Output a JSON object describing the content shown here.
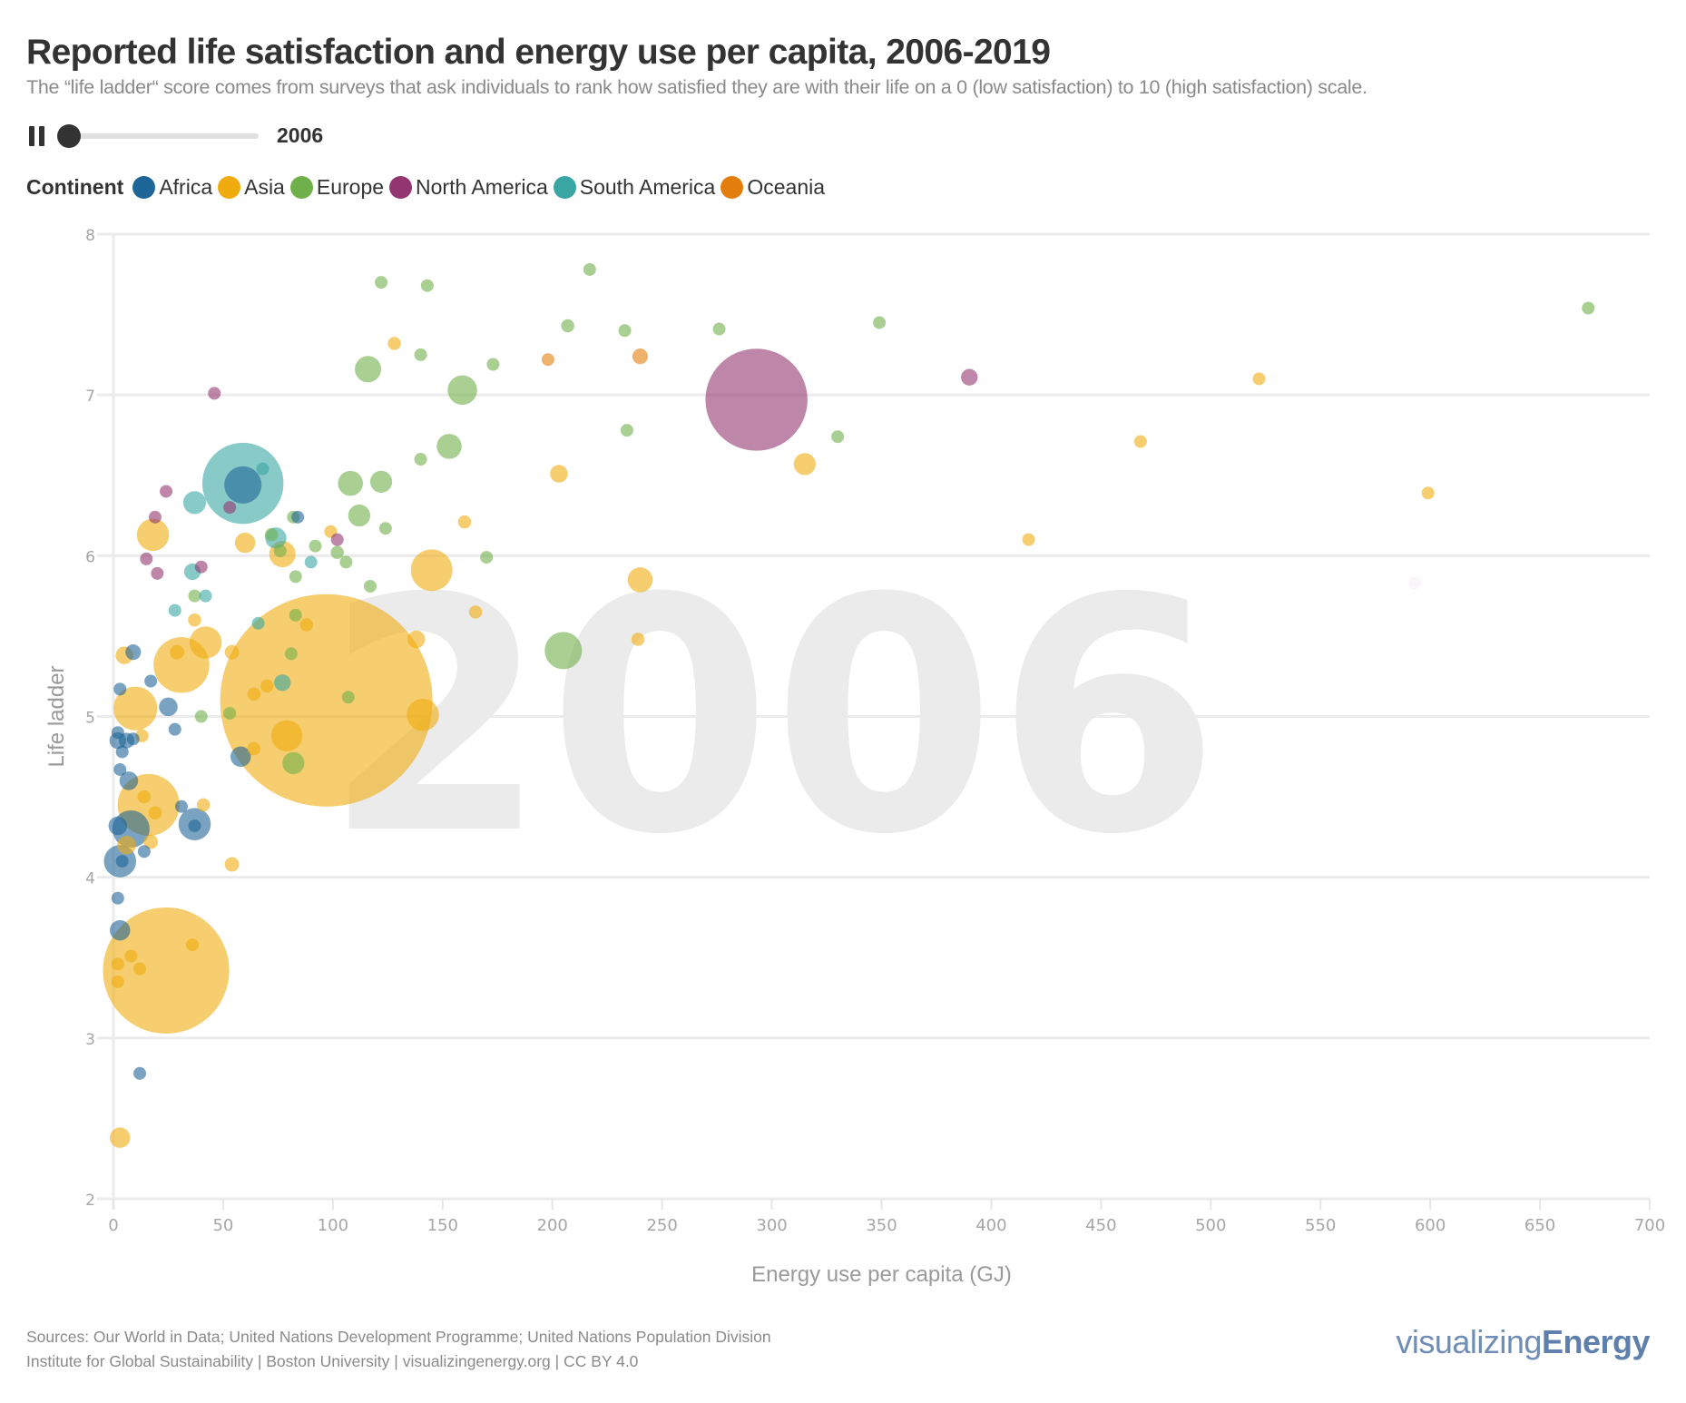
{
  "header": {
    "title": "Reported life satisfaction and energy use per capita, 2006-2019",
    "subtitle": "The “life ladder“ score comes from surveys that ask individuals to rank how satisfied they are with their life on a 0 (low satisfaction) to 10 (high satisfaction) scale."
  },
  "controls": {
    "play_state_icon": "pause-icon",
    "year": "2006",
    "slider_min": 2006,
    "slider_max": 2019,
    "slider_value": 2006
  },
  "legend": {
    "title": "Continent",
    "items": [
      {
        "label": "Africa",
        "color": "#1f6698"
      },
      {
        "label": "Asia",
        "color": "#f0ac0f"
      },
      {
        "label": "Europe",
        "color": "#70b04a"
      },
      {
        "label": "North America",
        "color": "#933570"
      },
      {
        "label": "South America",
        "color": "#39a6a4"
      },
      {
        "label": "Oceania",
        "color": "#e37e0c"
      }
    ]
  },
  "footer": {
    "sources": "Sources: Our World in Data; United Nations Development Programme; United Nations Population Division",
    "credits": "Institute for Global Sustainability | Boston University | visualizingenergy.org | CC BY 4.0",
    "brand_light": "visualizing",
    "brand_bold": "Energy"
  },
  "chart_data": {
    "type": "scatter",
    "subtype": "bubble",
    "title": "Reported life satisfaction and energy use per capita, 2006-2019",
    "watermark": "2006",
    "xlabel": "Energy use per capita (GJ)",
    "ylabel": "Life ladder",
    "xlim": [
      0,
      700
    ],
    "ylim": [
      2,
      8
    ],
    "xticks": [
      0,
      50,
      100,
      150,
      200,
      250,
      300,
      350,
      400,
      450,
      500,
      550,
      600,
      650,
      700
    ],
    "yticks": [
      2,
      3,
      4,
      5,
      6,
      7,
      8
    ],
    "grid": "horizontal",
    "size_encoding": "population (millions, approx.)",
    "opacity": 0.6,
    "points": [
      {
        "c": "Asia",
        "x": 97,
        "y": 5.1,
        "pop": 1300
      },
      {
        "c": "Asia",
        "x": 24,
        "y": 3.42,
        "pop": 460
      },
      {
        "c": "Asia",
        "x": 31,
        "y": 5.32,
        "pop": 90
      },
      {
        "c": "Asia",
        "x": 16,
        "y": 4.45,
        "pop": 110
      },
      {
        "c": "Asia",
        "x": 10,
        "y": 5.05,
        "pop": 55
      },
      {
        "c": "Asia",
        "x": 42,
        "y": 5.46,
        "pop": 30
      },
      {
        "c": "Asia",
        "x": 18,
        "y": 6.13,
        "pop": 30
      },
      {
        "c": "Asia",
        "x": 145,
        "y": 5.91,
        "pop": 50
      },
      {
        "c": "Asia",
        "x": 141,
        "y": 5.01,
        "pop": 30
      },
      {
        "c": "Asia",
        "x": 79,
        "y": 4.88,
        "pop": 28
      },
      {
        "c": "Asia",
        "x": 77,
        "y": 6.01,
        "pop": 20
      },
      {
        "c": "Asia",
        "x": 240,
        "y": 5.85,
        "pop": 18
      },
      {
        "c": "Asia",
        "x": 315,
        "y": 6.57,
        "pop": 14
      },
      {
        "c": "Asia",
        "x": 60,
        "y": 6.08,
        "pop": 12
      },
      {
        "c": "Asia",
        "x": 203,
        "y": 6.51,
        "pop": 9
      },
      {
        "c": "Asia",
        "x": 138,
        "y": 5.48,
        "pop": 9
      },
      {
        "c": "Asia",
        "x": 3,
        "y": 2.38,
        "pop": 12
      },
      {
        "c": "Asia",
        "x": 6,
        "y": 4.2,
        "pop": 10
      },
      {
        "c": "Asia",
        "x": 5,
        "y": 5.38,
        "pop": 9
      },
      {
        "c": "Asia",
        "x": 128,
        "y": 7.32,
        "pop": 5
      },
      {
        "c": "Asia",
        "x": 160,
        "y": 6.21,
        "pop": 5
      },
      {
        "c": "Asia",
        "x": 165,
        "y": 5.65,
        "pop": 5
      },
      {
        "c": "Asia",
        "x": 239,
        "y": 5.48,
        "pop": 5
      },
      {
        "c": "Asia",
        "x": 54,
        "y": 4.08,
        "pop": 6
      },
      {
        "c": "Asia",
        "x": 54,
        "y": 5.4,
        "pop": 6
      },
      {
        "c": "Asia",
        "x": 37,
        "y": 5.6,
        "pop": 5
      },
      {
        "c": "Asia",
        "x": 29,
        "y": 5.4,
        "pop": 6
      },
      {
        "c": "Asia",
        "x": 64,
        "y": 5.14,
        "pop": 5
      },
      {
        "c": "Asia",
        "x": 64,
        "y": 4.8,
        "pop": 5
      },
      {
        "c": "Asia",
        "x": 70,
        "y": 5.19,
        "pop": 5
      },
      {
        "c": "Asia",
        "x": 88,
        "y": 5.57,
        "pop": 5
      },
      {
        "c": "Asia",
        "x": 99,
        "y": 6.15,
        "pop": 4
      },
      {
        "c": "Asia",
        "x": 41,
        "y": 4.45,
        "pop": 5
      },
      {
        "c": "Asia",
        "x": 17,
        "y": 4.22,
        "pop": 6
      },
      {
        "c": "Asia",
        "x": 13,
        "y": 4.88,
        "pop": 5
      },
      {
        "c": "Asia",
        "x": 14,
        "y": 4.5,
        "pop": 5
      },
      {
        "c": "Asia",
        "x": 417,
        "y": 6.1,
        "pop": 3
      },
      {
        "c": "Asia",
        "x": 468,
        "y": 6.71,
        "pop": 3
      },
      {
        "c": "Asia",
        "x": 522,
        "y": 7.1,
        "pop": 3
      },
      {
        "c": "Asia",
        "x": 599,
        "y": 6.39,
        "pop": 3
      },
      {
        "c": "Asia",
        "x": 19,
        "y": 4.4,
        "pop": 5
      },
      {
        "c": "Asia",
        "x": 36,
        "y": 3.58,
        "pop": 4
      },
      {
        "c": "Asia",
        "x": 8,
        "y": 3.51,
        "pop": 4
      },
      {
        "c": "Asia",
        "x": 12,
        "y": 3.43,
        "pop": 4
      },
      {
        "c": "Asia",
        "x": 2,
        "y": 3.46,
        "pop": 4
      },
      {
        "c": "Asia",
        "x": 2,
        "y": 3.35,
        "pop": 4
      },
      {
        "c": "Africa",
        "x": 59,
        "y": 6.44,
        "pop": 40
      },
      {
        "c": "Africa",
        "x": 37,
        "y": 4.33,
        "pop": 30
      },
      {
        "c": "Africa",
        "x": 3,
        "y": 4.1,
        "pop": 30
      },
      {
        "c": "Africa",
        "x": 8,
        "y": 4.3,
        "pop": 40
      },
      {
        "c": "Africa",
        "x": 58,
        "y": 4.75,
        "pop": 12
      },
      {
        "c": "Africa",
        "x": 25,
        "y": 5.06,
        "pop": 10
      },
      {
        "c": "Africa",
        "x": 3,
        "y": 3.67,
        "pop": 12
      },
      {
        "c": "Africa",
        "x": 7,
        "y": 4.6,
        "pop": 10
      },
      {
        "c": "Africa",
        "x": 2,
        "y": 4.32,
        "pop": 10
      },
      {
        "c": "Africa",
        "x": 2,
        "y": 4.85,
        "pop": 8
      },
      {
        "c": "Africa",
        "x": 9,
        "y": 5.4,
        "pop": 7
      },
      {
        "c": "Africa",
        "x": 6,
        "y": 4.85,
        "pop": 7
      },
      {
        "c": "Africa",
        "x": 17,
        "y": 5.22,
        "pop": 4
      },
      {
        "c": "Africa",
        "x": 28,
        "y": 4.92,
        "pop": 4
      },
      {
        "c": "Africa",
        "x": 31,
        "y": 4.44,
        "pop": 4
      },
      {
        "c": "Africa",
        "x": 12,
        "y": 2.78,
        "pop": 4
      },
      {
        "c": "Africa",
        "x": 2,
        "y": 3.87,
        "pop": 4
      },
      {
        "c": "Africa",
        "x": 14,
        "y": 4.16,
        "pop": 4
      },
      {
        "c": "Africa",
        "x": 3,
        "y": 4.67,
        "pop": 4
      },
      {
        "c": "Africa",
        "x": 4,
        "y": 4.78,
        "pop": 4
      },
      {
        "c": "Africa",
        "x": 3,
        "y": 5.17,
        "pop": 4
      },
      {
        "c": "Africa",
        "x": 2,
        "y": 4.9,
        "pop": 4
      },
      {
        "c": "Africa",
        "x": 9,
        "y": 4.86,
        "pop": 4
      },
      {
        "c": "Africa",
        "x": 37,
        "y": 4.32,
        "pop": 4
      },
      {
        "c": "Africa",
        "x": 84,
        "y": 6.24,
        "pop": 3
      },
      {
        "c": "Africa",
        "x": 4,
        "y": 4.1,
        "pop": 4
      },
      {
        "c": "Europe",
        "x": 205,
        "y": 5.41,
        "pop": 40
      },
      {
        "c": "Europe",
        "x": 159,
        "y": 7.03,
        "pop": 25
      },
      {
        "c": "Europe",
        "x": 116,
        "y": 7.16,
        "pop": 20
      },
      {
        "c": "Europe",
        "x": 153,
        "y": 6.68,
        "pop": 18
      },
      {
        "c": "Europe",
        "x": 108,
        "y": 6.45,
        "pop": 18
      },
      {
        "c": "Europe",
        "x": 122,
        "y": 6.46,
        "pop": 14
      },
      {
        "c": "Europe",
        "x": 112,
        "y": 6.25,
        "pop": 14
      },
      {
        "c": "Europe",
        "x": 82,
        "y": 4.71,
        "pop": 14
      },
      {
        "c": "Europe",
        "x": 122,
        "y": 7.7,
        "pop": 4
      },
      {
        "c": "Europe",
        "x": 143,
        "y": 7.68,
        "pop": 4
      },
      {
        "c": "Europe",
        "x": 217,
        "y": 7.78,
        "pop": 4
      },
      {
        "c": "Europe",
        "x": 207,
        "y": 7.43,
        "pop": 5
      },
      {
        "c": "Europe",
        "x": 233,
        "y": 7.4,
        "pop": 4
      },
      {
        "c": "Europe",
        "x": 276,
        "y": 7.41,
        "pop": 4
      },
      {
        "c": "Europe",
        "x": 349,
        "y": 7.45,
        "pop": 4
      },
      {
        "c": "Europe",
        "x": 672,
        "y": 7.54,
        "pop": 4
      },
      {
        "c": "Europe",
        "x": 140,
        "y": 7.25,
        "pop": 4
      },
      {
        "c": "Europe",
        "x": 173,
        "y": 7.19,
        "pop": 4
      },
      {
        "c": "Europe",
        "x": 234,
        "y": 6.78,
        "pop": 4
      },
      {
        "c": "Europe",
        "x": 330,
        "y": 6.74,
        "pop": 4
      },
      {
        "c": "Europe",
        "x": 140,
        "y": 6.6,
        "pop": 4
      },
      {
        "c": "Europe",
        "x": 124,
        "y": 6.17,
        "pop": 4
      },
      {
        "c": "Europe",
        "x": 170,
        "y": 5.99,
        "pop": 4
      },
      {
        "c": "Europe",
        "x": 117,
        "y": 5.81,
        "pop": 4
      },
      {
        "c": "Europe",
        "x": 92,
        "y": 6.06,
        "pop": 4
      },
      {
        "c": "Europe",
        "x": 102,
        "y": 6.02,
        "pop": 5
      },
      {
        "c": "Europe",
        "x": 106,
        "y": 5.96,
        "pop": 4
      },
      {
        "c": "Europe",
        "x": 83,
        "y": 5.87,
        "pop": 4
      },
      {
        "c": "Europe",
        "x": 72,
        "y": 6.13,
        "pop": 5
      },
      {
        "c": "Europe",
        "x": 76,
        "y": 6.03,
        "pop": 4
      },
      {
        "c": "Europe",
        "x": 83,
        "y": 5.63,
        "pop": 4
      },
      {
        "c": "Europe",
        "x": 81,
        "y": 5.39,
        "pop": 4
      },
      {
        "c": "Europe",
        "x": 37,
        "y": 5.75,
        "pop": 4
      },
      {
        "c": "Europe",
        "x": 40,
        "y": 5.0,
        "pop": 4
      },
      {
        "c": "Europe",
        "x": 53,
        "y": 5.02,
        "pop": 4
      },
      {
        "c": "Europe",
        "x": 107,
        "y": 5.12,
        "pop": 4
      },
      {
        "c": "Europe",
        "x": 82,
        "y": 6.24,
        "pop": 4
      },
      {
        "c": "North America",
        "x": 293,
        "y": 6.97,
        "pop": 300
      },
      {
        "c": "North America",
        "x": 390,
        "y": 7.11,
        "pop": 8
      },
      {
        "c": "North America",
        "x": 46,
        "y": 7.01,
        "pop": 4
      },
      {
        "c": "North America",
        "x": 24,
        "y": 6.4,
        "pop": 4
      },
      {
        "c": "North America",
        "x": 19,
        "y": 6.24,
        "pop": 4
      },
      {
        "c": "North America",
        "x": 15,
        "y": 5.98,
        "pop": 4
      },
      {
        "c": "North America",
        "x": 20,
        "y": 5.89,
        "pop": 4
      },
      {
        "c": "North America",
        "x": 40,
        "y": 5.93,
        "pop": 4
      },
      {
        "c": "North America",
        "x": 53,
        "y": 6.3,
        "pop": 4
      },
      {
        "c": "North America",
        "x": 102,
        "y": 6.1,
        "pop": 4
      },
      {
        "c": "South America",
        "x": 59,
        "y": 6.45,
        "pop": 190
      },
      {
        "c": "South America",
        "x": 37,
        "y": 6.33,
        "pop": 15
      },
      {
        "c": "South America",
        "x": 74,
        "y": 6.11,
        "pop": 13
      },
      {
        "c": "South America",
        "x": 77,
        "y": 5.21,
        "pop": 8
      },
      {
        "c": "South America",
        "x": 36,
        "y": 5.9,
        "pop": 8
      },
      {
        "c": "South America",
        "x": 68,
        "y": 6.54,
        "pop": 4
      },
      {
        "c": "South America",
        "x": 42,
        "y": 5.75,
        "pop": 4
      },
      {
        "c": "South America",
        "x": 28,
        "y": 5.66,
        "pop": 4
      },
      {
        "c": "South America",
        "x": 66,
        "y": 5.58,
        "pop": 4
      },
      {
        "c": "South America",
        "x": 90,
        "y": 5.96,
        "pop": 4
      },
      {
        "c": "Oceania",
        "x": 240,
        "y": 7.24,
        "pop": 7
      },
      {
        "c": "Oceania",
        "x": 198,
        "y": 7.22,
        "pop": 4
      },
      {
        "c": "North America",
        "x": 593,
        "y": 5.83,
        "pop": 3
      }
    ]
  }
}
